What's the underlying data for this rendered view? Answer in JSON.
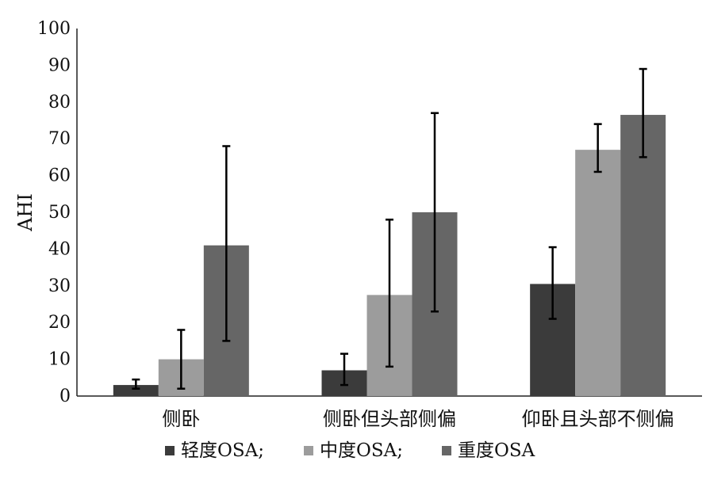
{
  "chart_data": {
    "type": "bar",
    "categories": [
      "侧卧",
      "侧卧但头部侧偏",
      "仰卧且头部不侧偏"
    ],
    "series": [
      {
        "name": "轻度OSA;",
        "color": "#3b3b3b",
        "values": [
          3,
          7,
          30.5
        ],
        "error": [
          [
            2,
            4.5
          ],
          [
            3,
            11.5
          ],
          [
            21,
            40.5
          ]
        ]
      },
      {
        "name": "中度OSA;",
        "color": "#9c9c9c",
        "values": [
          10,
          27.5,
          67
        ],
        "error": [
          [
            2,
            18
          ],
          [
            8,
            48
          ],
          [
            61,
            74
          ]
        ]
      },
      {
        "name": "重度OSA",
        "color": "#666666",
        "values": [
          41,
          50,
          76.5
        ],
        "error": [
          [
            15,
            68
          ],
          [
            23,
            77
          ],
          [
            65,
            89
          ]
        ]
      }
    ],
    "ylabel": "AHI",
    "xlabel": "",
    "ylim": [
      0,
      100
    ],
    "yticks": [
      0,
      10,
      20,
      30,
      40,
      50,
      60,
      70,
      80,
      90,
      100
    ],
    "grid": false,
    "legend_position": "bottom"
  }
}
